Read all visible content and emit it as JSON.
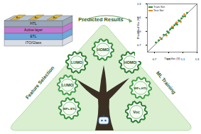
{
  "texts": {
    "top": "Predicted Results",
    "left": "Feature Selection",
    "right": "ML Training"
  },
  "device": {
    "electrode": "Au",
    "layers": [
      "HTL",
      "Active layer",
      "ETL",
      "ITO/Glass"
    ]
  },
  "gears": [
    {
      "label": "LUMO"
    },
    {
      "label": "HOMO"
    },
    {
      "label": "HOMO"
    },
    {
      "label": "LUMO"
    },
    {
      "label": "WFs-ETL"
    },
    {
      "label": "WFs-HTL"
    },
    {
      "label": "Voc"
    }
  ],
  "chart_data": {
    "type": "scatter",
    "x_label": "True Voc (V)",
    "y_label": "Predicted Voc (V)",
    "xlim": [
      0.6,
      1.3
    ],
    "ylim": [
      0.6,
      1.3
    ],
    "xticks": [
      0.7,
      0.9,
      1.1,
      1.3
    ],
    "yticks": [
      0.7,
      0.9,
      1.1,
      1.3
    ],
    "series": [
      {
        "name": "Train Set",
        "color": "#2e8b3a",
        "x": [
          0.72,
          0.76,
          0.8,
          0.83,
          0.86,
          0.88,
          0.9,
          0.92,
          0.94,
          0.96,
          0.98,
          1.0,
          1.02,
          1.04,
          1.06,
          1.08,
          1.1,
          1.13,
          1.16
        ],
        "values": [
          0.74,
          0.77,
          0.79,
          0.85,
          0.85,
          0.9,
          0.88,
          0.93,
          0.95,
          0.95,
          0.99,
          1.01,
          1.0,
          1.06,
          1.05,
          1.09,
          1.12,
          1.12,
          1.17
        ]
      },
      {
        "name": "Test Set",
        "color": "#e08a1e",
        "x": [
          0.78,
          0.87,
          0.95,
          1.01,
          1.07,
          1.12
        ],
        "values": [
          0.81,
          0.84,
          0.97,
          1.03,
          1.04,
          1.15
        ]
      }
    ]
  }
}
